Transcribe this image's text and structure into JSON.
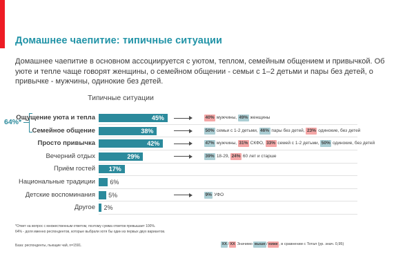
{
  "slide": {
    "title": "Домашнее чаепитие: типичные ситуации",
    "body": "Домашнее чаепитие в основном ассоциируется с уютом, теплом, семейным общением и привычкой. Об уюте и тепле чаще говорят женщины, о семейном общении - семьи с 1–2 детьми и пары без детей, о привычке - мужчины, одинокие без детей.",
    "colors": {
      "accent_red_bar": "#ee1c24",
      "title_teal": "#2193a7",
      "bar_teal": "#2b8a9c",
      "chip_higher_bg": "#abced4",
      "chip_lower_bg": "#f5a6a6"
    }
  },
  "chart_data": {
    "type": "bar",
    "orientation": "horizontal",
    "title": "Типичные ситуации",
    "unit": "%",
    "xlim": [
      0,
      50
    ],
    "grid": false,
    "legend_position": "bottom",
    "group_note": {
      "label": "64%*",
      "covers": [
        "Ощущение уюта и тепла",
        "Семейное общение"
      ]
    },
    "categories": [
      "Ощущение уюта и тепла",
      "Семейное общение",
      "Просто привычка",
      "Вечерний отдых",
      "Приём гостей",
      "Национальные традиции",
      "Детские воспоминания",
      "Другое"
    ],
    "values": [
      45,
      38,
      42,
      29,
      17,
      6,
      5,
      2
    ],
    "rows": [
      {
        "label": "Ощущение уюта и тепла",
        "value": 45,
        "bold": true,
        "value_inside": true,
        "annotation": [
          {
            "t": "40%",
            "hl": "lower"
          },
          {
            "t": " мужчины, "
          },
          {
            "t": "49%",
            "hl": "higher"
          },
          {
            "t": " женщины"
          }
        ]
      },
      {
        "label": "Семейное общение",
        "value": 38,
        "bold": true,
        "value_inside": true,
        "annotation": [
          {
            "t": "50%",
            "hl": "higher"
          },
          {
            "t": " семьи с 1-2 детьми, "
          },
          {
            "t": "46%",
            "hl": "higher"
          },
          {
            "t": " пары без детей, "
          },
          {
            "t": "23%",
            "hl": "lower"
          },
          {
            "t": " одинокие, без детей"
          }
        ]
      },
      {
        "label": "Просто привычка",
        "value": 42,
        "bold": true,
        "value_inside": true,
        "annotation": [
          {
            "t": "47%",
            "hl": "higher"
          },
          {
            "t": " мужчины, "
          },
          {
            "t": "31%",
            "hl": "lower"
          },
          {
            "t": " СКФО, "
          },
          {
            "t": "33%",
            "hl": "lower"
          },
          {
            "t": " семей с 1-2 детьми, "
          },
          {
            "t": "50%",
            "hl": "higher"
          },
          {
            "t": " одинокие, без детей"
          }
        ]
      },
      {
        "label": "Вечерний отдых",
        "value": 29,
        "bold": false,
        "value_inside": true,
        "annotation": [
          {
            "t": "39%",
            "hl": "higher"
          },
          {
            "t": " 18-29, "
          },
          {
            "t": "24%",
            "hl": "lower"
          },
          {
            "t": " 60 лет и старше"
          }
        ]
      },
      {
        "label": "Приём гостей",
        "value": 17,
        "bold": false,
        "value_inside": true,
        "annotation": []
      },
      {
        "label": "Национальные традиции",
        "value": 6,
        "bold": false,
        "value_inside": false,
        "annotation": []
      },
      {
        "label": "Детские воспоминания",
        "value": 5,
        "bold": false,
        "value_inside": false,
        "annotation": [
          {
            "t": "9%",
            "hl": "higher"
          },
          {
            "t": " УФО"
          }
        ]
      },
      {
        "label": "Другое",
        "value": 2,
        "bold": false,
        "value_inside": false,
        "annotation": []
      }
    ]
  },
  "footnotes": {
    "line1": "*Ответ на вопрос с множественным ответом, поэтому сумма ответов превышает 100%.",
    "line2": "64% - доля именно респондентов, которые выбрали хотя бы один из первых двух вариантов.",
    "base": "База: респонденты, пьющие чай, n=1591."
  },
  "legend": {
    "segments": [
      {
        "t": "XX",
        "hl": "higher"
      },
      {
        "t": "/"
      },
      {
        "t": "XX",
        "hl": "lower"
      },
      {
        "t": " Значимо "
      },
      {
        "t": "выше",
        "hl": "higher"
      },
      {
        "t": "/"
      },
      {
        "t": "ниже",
        "hl": "lower"
      },
      {
        "t": ", в сравнении с Тотал (ур. знач. 0,95)"
      }
    ]
  }
}
